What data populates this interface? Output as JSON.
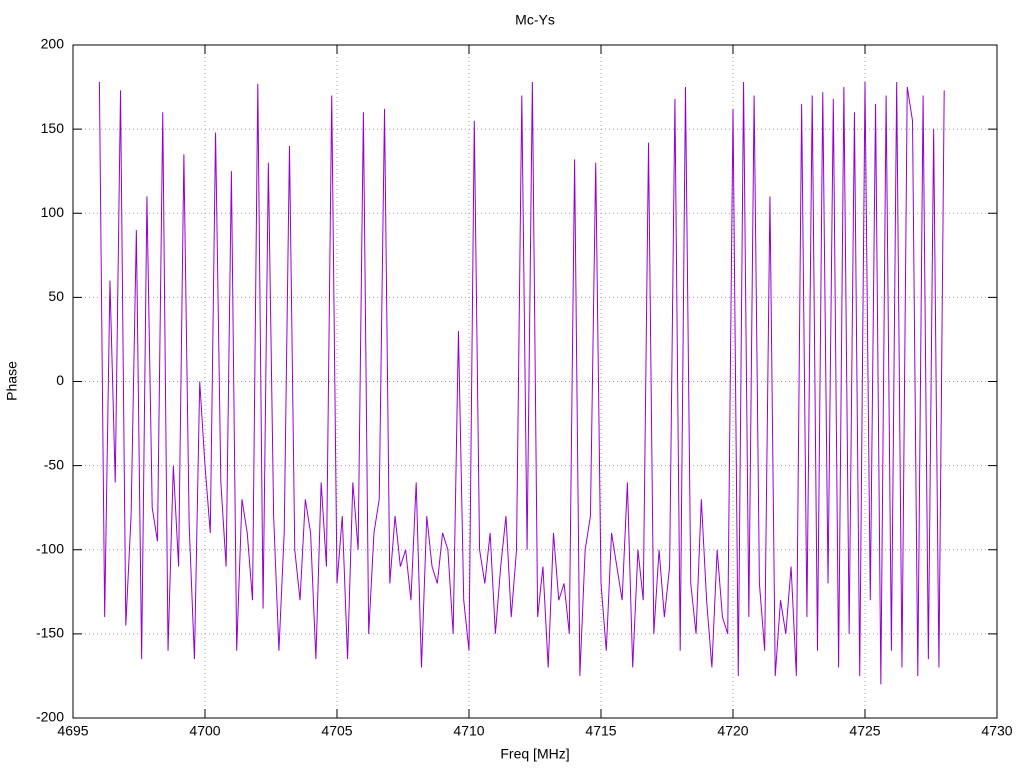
{
  "chart_data": {
    "type": "line",
    "title": "Mc-Ys",
    "xlabel": "Freq [MHz]",
    "ylabel": "Phase",
    "x": [
      4696.0,
      4696.2,
      4696.4,
      4696.6,
      4696.8,
      4697.0,
      4697.2,
      4697.4,
      4697.6,
      4697.8,
      4698.0,
      4698.2,
      4698.4,
      4698.6,
      4698.8,
      4699.0,
      4699.2,
      4699.4,
      4699.6,
      4699.8,
      4700.0,
      4700.2,
      4700.4,
      4700.6,
      4700.8,
      4701.0,
      4701.2,
      4701.4,
      4701.6,
      4701.8,
      4702.0,
      4702.2,
      4702.4,
      4702.6,
      4702.8,
      4703.0,
      4703.2,
      4703.4,
      4703.6,
      4703.8,
      4704.0,
      4704.2,
      4704.4,
      4704.6,
      4704.8,
      4705.0,
      4705.2,
      4705.4,
      4705.6,
      4705.8,
      4706.0,
      4706.2,
      4706.4,
      4706.6,
      4706.8,
      4707.0,
      4707.2,
      4707.4,
      4707.6,
      4707.8,
      4708.0,
      4708.2,
      4708.4,
      4708.6,
      4708.8,
      4709.0,
      4709.2,
      4709.4,
      4709.6,
      4709.8,
      4710.0,
      4710.2,
      4710.4,
      4710.6,
      4710.8,
      4711.0,
      4711.2,
      4711.4,
      4711.6,
      4711.8,
      4712.0,
      4712.2,
      4712.4,
      4712.6,
      4712.8,
      4713.0,
      4713.2,
      4713.4,
      4713.6,
      4713.8,
      4714.0,
      4714.2,
      4714.4,
      4714.6,
      4714.8,
      4715.0,
      4715.2,
      4715.4,
      4715.6,
      4715.8,
      4716.0,
      4716.2,
      4716.4,
      4716.6,
      4716.8,
      4717.0,
      4717.2,
      4717.4,
      4717.6,
      4717.8,
      4718.0,
      4718.2,
      4718.4,
      4718.6,
      4718.8,
      4719.0,
      4719.2,
      4719.4,
      4719.6,
      4719.8,
      4720.0,
      4720.2,
      4720.4,
      4720.6,
      4720.8,
      4721.0,
      4721.2,
      4721.4,
      4721.6,
      4721.8,
      4722.0,
      4722.2,
      4722.4,
      4722.6,
      4722.8,
      4723.0,
      4723.2,
      4723.4,
      4723.6,
      4723.8,
      4724.0,
      4724.2,
      4724.4,
      4724.6,
      4724.8,
      4725.0,
      4725.2,
      4725.4,
      4725.6,
      4725.8,
      4726.0,
      4726.2,
      4726.4,
      4726.6,
      4726.8,
      4727.0,
      4727.2,
      4727.4,
      4727.6,
      4727.8,
      4728.0
    ],
    "series": [
      {
        "color": "#9400d3",
        "values": [
          178,
          -140,
          60,
          -60,
          173,
          -145,
          -80,
          90,
          -165,
          110,
          -75,
          -95,
          160,
          -160,
          -50,
          -110,
          135,
          -85,
          -165,
          0,
          -50,
          -90,
          148,
          -60,
          -110,
          125,
          -160,
          -70,
          -90,
          -130,
          177,
          -135,
          130,
          -80,
          -160,
          -90,
          140,
          -100,
          -130,
          -70,
          -90,
          -165,
          -60,
          -110,
          170,
          -120,
          -80,
          -165,
          -60,
          -100,
          160,
          -150,
          -90,
          -70,
          162,
          -120,
          -80,
          -110,
          -100,
          -130,
          -60,
          -170,
          -80,
          -110,
          -120,
          -90,
          -100,
          -150,
          30,
          -130,
          -160,
          155,
          -100,
          -120,
          -90,
          -150,
          -110,
          -80,
          -140,
          -100,
          170,
          -100,
          178,
          -140,
          -110,
          -170,
          -90,
          -130,
          -120,
          -150,
          132,
          -175,
          -100,
          -80,
          130,
          -120,
          -160,
          -90,
          -110,
          -130,
          -60,
          -170,
          -100,
          -130,
          142,
          -150,
          -100,
          -140,
          -110,
          168,
          -160,
          175,
          -120,
          -150,
          -70,
          -130,
          -170,
          -100,
          -140,
          -150,
          162,
          -175,
          178,
          -140,
          170,
          -120,
          -160,
          110,
          -175,
          -130,
          -150,
          -110,
          -175,
          165,
          -140,
          170,
          -160,
          172,
          -120,
          168,
          -170,
          175,
          -150,
          160,
          -175,
          178,
          -130,
          165,
          -180,
          170,
          -160,
          178,
          -170,
          175,
          155,
          -175,
          170,
          -165,
          150,
          -170,
          173
        ]
      }
    ],
    "xlim": [
      4695,
      4730
    ],
    "xticks": [
      4695,
      4700,
      4705,
      4710,
      4715,
      4720,
      4725,
      4730
    ],
    "ylim": [
      -200,
      200
    ],
    "yticks": [
      -200,
      -150,
      -100,
      -50,
      0,
      50,
      100,
      150,
      200
    ],
    "grid": true
  }
}
